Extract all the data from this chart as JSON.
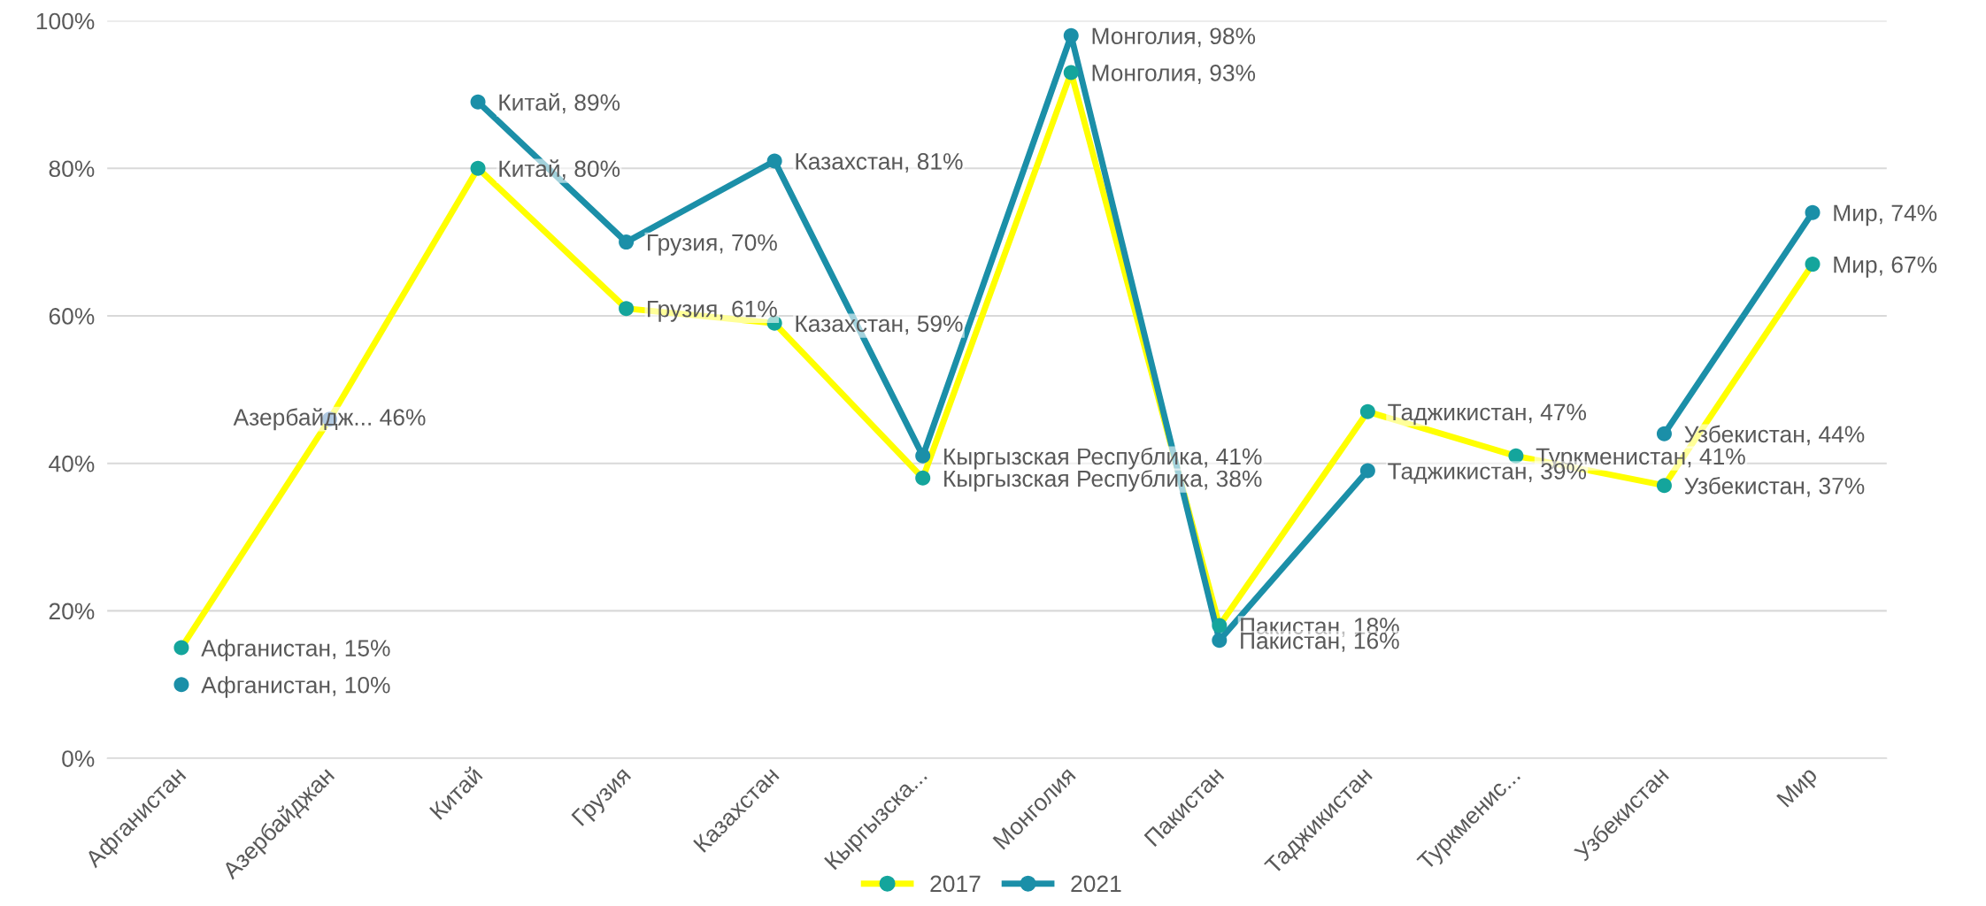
{
  "chart_data": {
    "type": "line",
    "categories": [
      "Афганистан",
      "Азербайджан",
      "Китай",
      "Грузия",
      "Казахстан",
      "Кыргызска...",
      "Монголия",
      "Пакистан",
      "Таджикистан",
      "Туркменис...",
      "Узбекистан",
      "Мир"
    ],
    "series": [
      {
        "name": "2017",
        "color": "#ffff00",
        "colors": [
          "#14a59c",
          "#3a78b5",
          "#14a59c",
          "#14a59c",
          "#14a59c",
          "#14a59c",
          "#14a59c",
          "#14a59c",
          "#14a59c",
          "#14a59c",
          "#14a59c",
          "#14a59c"
        ],
        "values": [
          15,
          46,
          80,
          61,
          59,
          38,
          93,
          18,
          47,
          41,
          37,
          67
        ],
        "value_labels": [
          "Афганистан, 15%",
          "Азербайдж... 46%",
          "Китай, 80%",
          "Грузия, 61%",
          "Казахстан, 59%",
          "Кыргызская Республика, 38%",
          "Монголия, 93%",
          "Пакистан, 18%",
          "Таджикистан, 47%",
          "Туркменистан, 41%",
          "Узбекистан, 37%",
          "Мир, 67%"
        ]
      },
      {
        "name": "2021",
        "color": "#1b8fa8",
        "colors": [
          "#1b8fa8",
          "#1b8fa8",
          "#1b8fa8",
          "#1b8fa8",
          "#1b8fa8",
          "#1b8fa8",
          "#1b8fa8",
          "#1b8fa8",
          "#1b8fa8",
          "#1b8fa8",
          "#1b8fa8",
          "#1b8fa8"
        ],
        "values": [
          10,
          null,
          89,
          70,
          81,
          41,
          98,
          16,
          39,
          null,
          44,
          74
        ],
        "value_labels": [
          "Афганистан, 10%",
          null,
          "Китай, 89%",
          "Грузия, 70%",
          "Казахстан, 81%",
          "Кыргызская Республика, 41%",
          "Монголия, 98%",
          "Пакистан, 16%",
          "Таджикистан, 39%",
          null,
          "Узбекистан, 44%",
          "Мир, 74%"
        ]
      }
    ],
    "ylim": [
      0,
      100
    ],
    "yticks": [
      {
        "value": 0,
        "label": "0%"
      },
      {
        "value": 20,
        "label": "20%"
      },
      {
        "value": 40,
        "label": "40%"
      },
      {
        "value": 60,
        "label": "60%"
      },
      {
        "value": 80,
        "label": "80%"
      },
      {
        "value": 100,
        "label": "100%"
      }
    ],
    "grid": "y",
    "legend": "bottom",
    "marker": "circle",
    "line_style": "solid"
  }
}
